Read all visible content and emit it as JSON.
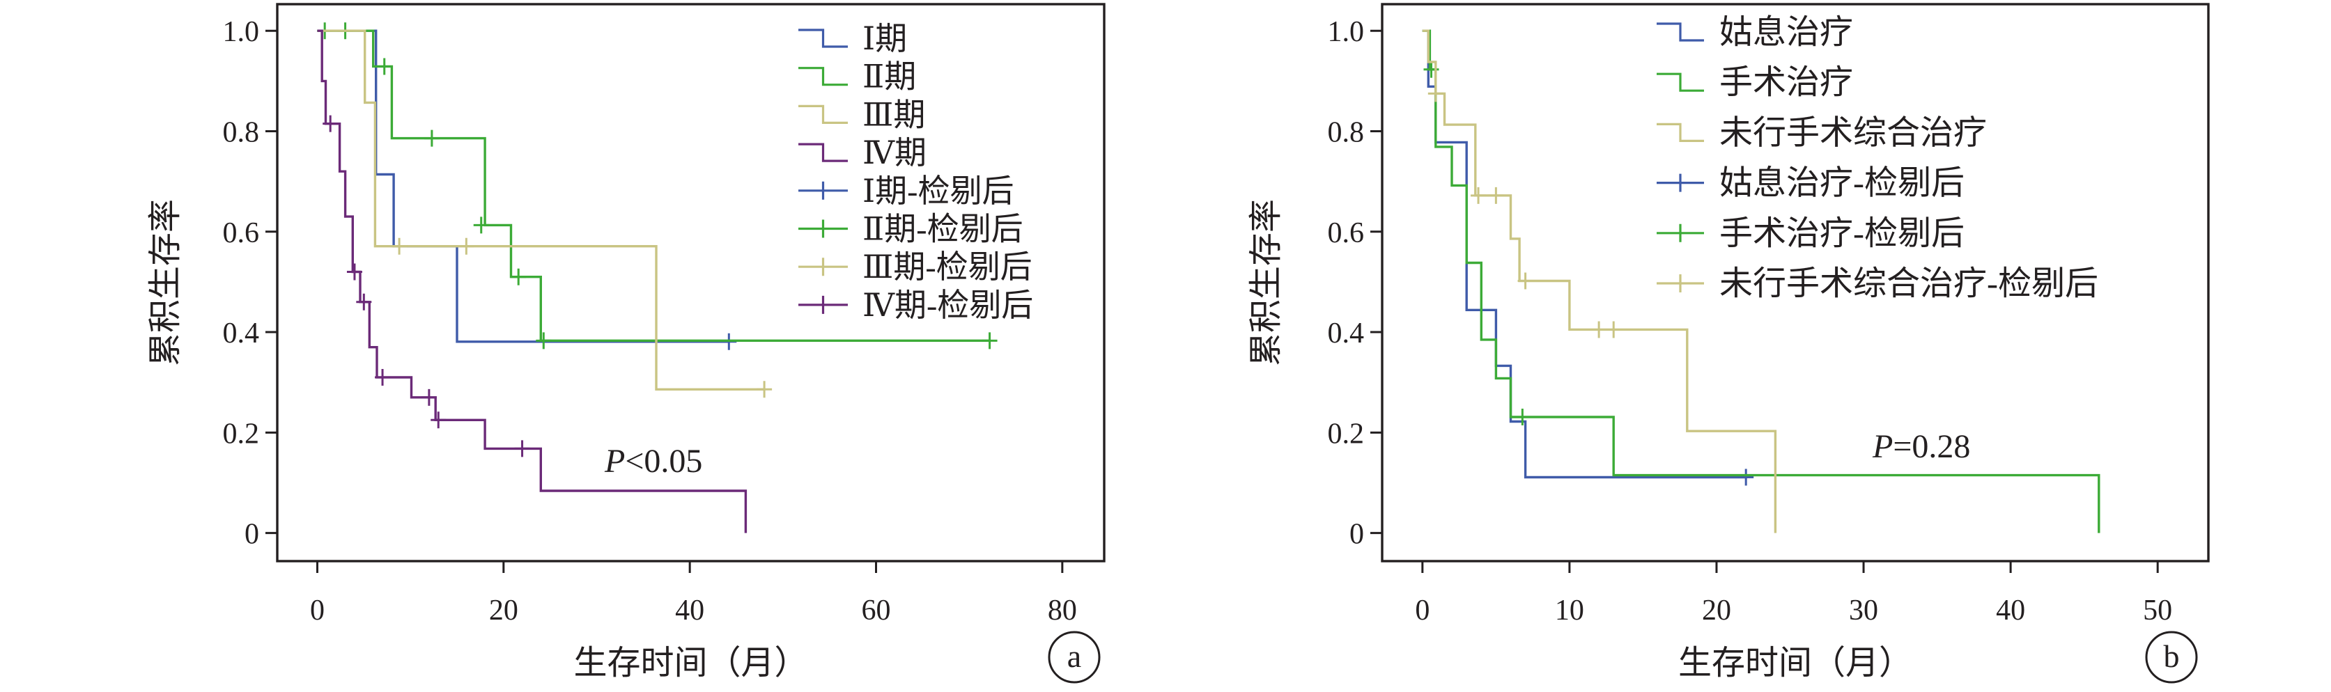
{
  "chart_data": [
    {
      "type": "line",
      "panel_label": "a",
      "xlabel": "生存时间（月）",
      "ylabel": "累积生存率",
      "xlim": [
        -4.3,
        84.5
      ],
      "ylim": [
        -0.056,
        1.053
      ],
      "xticks": [
        0,
        20,
        40,
        60,
        80
      ],
      "xtick_labels": [
        "0",
        "20",
        "40",
        "60",
        "80"
      ],
      "yticks": [
        0,
        0.2,
        0.4,
        0.6,
        0.8,
        1.0
      ],
      "ytick_labels": [
        "0",
        "0.2",
        "0.4",
        "0.6",
        "0.8",
        "1.0"
      ],
      "grid": false,
      "legend_position": "top-right",
      "annotation": {
        "symbol": "P",
        "text": "<0.05"
      },
      "series": [
        {
          "name": "Ⅰ期",
          "censored_label": "Ⅰ期-检剔后",
          "color": "#3f5ba9",
          "steps": [
            [
              0,
              1.0
            ],
            [
              6.3,
              0.714
            ],
            [
              8.2,
              0.571
            ],
            [
              15.0,
              0.381
            ]
          ],
          "end": 44.2,
          "censored": [
            [
              44.2,
              0.381
            ]
          ]
        },
        {
          "name": "Ⅱ期",
          "censored_label": "Ⅱ期-检剔后",
          "color": "#3cab37",
          "steps": [
            [
              0,
              1.0
            ],
            [
              6.0,
              0.929
            ],
            [
              8.0,
              0.786
            ],
            [
              18.0,
              0.613
            ],
            [
              20.8,
              0.51
            ],
            [
              24.0,
              0.383
            ]
          ],
          "end": 72.2,
          "censored": [
            [
              0.8,
              1.0
            ],
            [
              3.0,
              1.0
            ],
            [
              7.2,
              0.929
            ],
            [
              12.3,
              0.786
            ],
            [
              17.6,
              0.613
            ],
            [
              21.6,
              0.51
            ],
            [
              24.3,
              0.383
            ],
            [
              72.2,
              0.383
            ]
          ]
        },
        {
          "name": "Ⅲ期",
          "censored_label": "Ⅲ期-检剔后",
          "color": "#c9c483",
          "steps": [
            [
              0,
              1.0
            ],
            [
              5.1,
              0.857
            ],
            [
              6.2,
              0.571
            ],
            [
              36.4,
              0.286
            ]
          ],
          "end": 48.0,
          "censored": [
            [
              8.8,
              0.571
            ],
            [
              16.0,
              0.571
            ],
            [
              48.0,
              0.286
            ]
          ]
        },
        {
          "name": "Ⅳ期",
          "censored_label": "Ⅳ期-检剔后",
          "color": "#6b2a78",
          "steps": [
            [
              0,
              1.0
            ],
            [
              0.5,
              0.9
            ],
            [
              0.9,
              0.815
            ],
            [
              2.4,
              0.72
            ],
            [
              3.0,
              0.63
            ],
            [
              3.8,
              0.52
            ],
            [
              4.6,
              0.46
            ],
            [
              5.6,
              0.37
            ],
            [
              6.4,
              0.31
            ],
            [
              10.1,
              0.27
            ],
            [
              12.7,
              0.225
            ],
            [
              18.0,
              0.168
            ],
            [
              24.0,
              0.084
            ],
            [
              46.0,
              0
            ]
          ],
          "end": 46.0,
          "censored": [
            [
              1.4,
              0.815
            ],
            [
              4.0,
              0.52
            ],
            [
              5.0,
              0.46
            ],
            [
              7.0,
              0.31
            ],
            [
              12.0,
              0.27
            ],
            [
              13.0,
              0.225
            ],
            [
              22.0,
              0.168
            ]
          ]
        }
      ]
    },
    {
      "type": "line",
      "panel_label": "b",
      "xlabel": "生存时间（月）",
      "ylabel": "累积生存率",
      "xlim": [
        -2.74,
        53.45
      ],
      "ylim": [
        -0.056,
        1.053
      ],
      "xticks": [
        0,
        10,
        20,
        30,
        40,
        50
      ],
      "xtick_labels": [
        "0",
        "10",
        "20",
        "30",
        "40",
        "50"
      ],
      "yticks": [
        0,
        0.2,
        0.4,
        0.6,
        0.8,
        1.0
      ],
      "ytick_labels": [
        "0",
        "0.2",
        "0.4",
        "0.6",
        "0.8",
        "1.0"
      ],
      "grid": false,
      "legend_position": "top-right",
      "annotation": {
        "symbol": "P",
        "text": "=0.28"
      },
      "series": [
        {
          "name": "姑息治疗",
          "censored_label": "姑息治疗-检剔后",
          "color": "#3f5ba9",
          "steps": [
            [
              0,
              1.0
            ],
            [
              0.4,
              0.889
            ],
            [
              0.9,
              0.778
            ],
            [
              3.0,
              0.444
            ],
            [
              5.0,
              0.333
            ],
            [
              6.0,
              0.222
            ],
            [
              7.0,
              0.111
            ]
          ],
          "end": 22.0,
          "censored": [
            [
              22.0,
              0.111
            ]
          ]
        },
        {
          "name": "手术治疗",
          "censored_label": "手术治疗-检剔后",
          "color": "#3cab37",
          "steps": [
            [
              0,
              1.0
            ],
            [
              0.5,
              0.923
            ],
            [
              0.9,
              0.769
            ],
            [
              2.0,
              0.692
            ],
            [
              3.0,
              0.538
            ],
            [
              4.0,
              0.385
            ],
            [
              5.0,
              0.308
            ],
            [
              6.0,
              0.231
            ],
            [
              13.0,
              0.115
            ],
            [
              46.0,
              0
            ]
          ],
          "end": 46.0,
          "censored": [
            [
              0.6,
              0.923
            ],
            [
              6.8,
              0.231
            ]
          ]
        },
        {
          "name": "未行手术综合治疗",
          "censored_label": "未行手术综合治疗-检剔后",
          "color": "#c9c483",
          "steps": [
            [
              0,
              1.0
            ],
            [
              0.4,
              0.938
            ],
            [
              0.9,
              0.875
            ],
            [
              1.5,
              0.813
            ],
            [
              3.6,
              0.672
            ],
            [
              6.0,
              0.586
            ],
            [
              6.6,
              0.502
            ],
            [
              10.0,
              0.405
            ],
            [
              18.0,
              0.203
            ],
            [
              24.0,
              0
            ]
          ],
          "end": 24.0,
          "censored": [
            [
              0.9,
              0.875
            ],
            [
              3.8,
              0.672
            ],
            [
              5.0,
              0.672
            ],
            [
              7.0,
              0.502
            ],
            [
              12.0,
              0.405
            ],
            [
              13.0,
              0.405
            ]
          ]
        }
      ]
    }
  ]
}
